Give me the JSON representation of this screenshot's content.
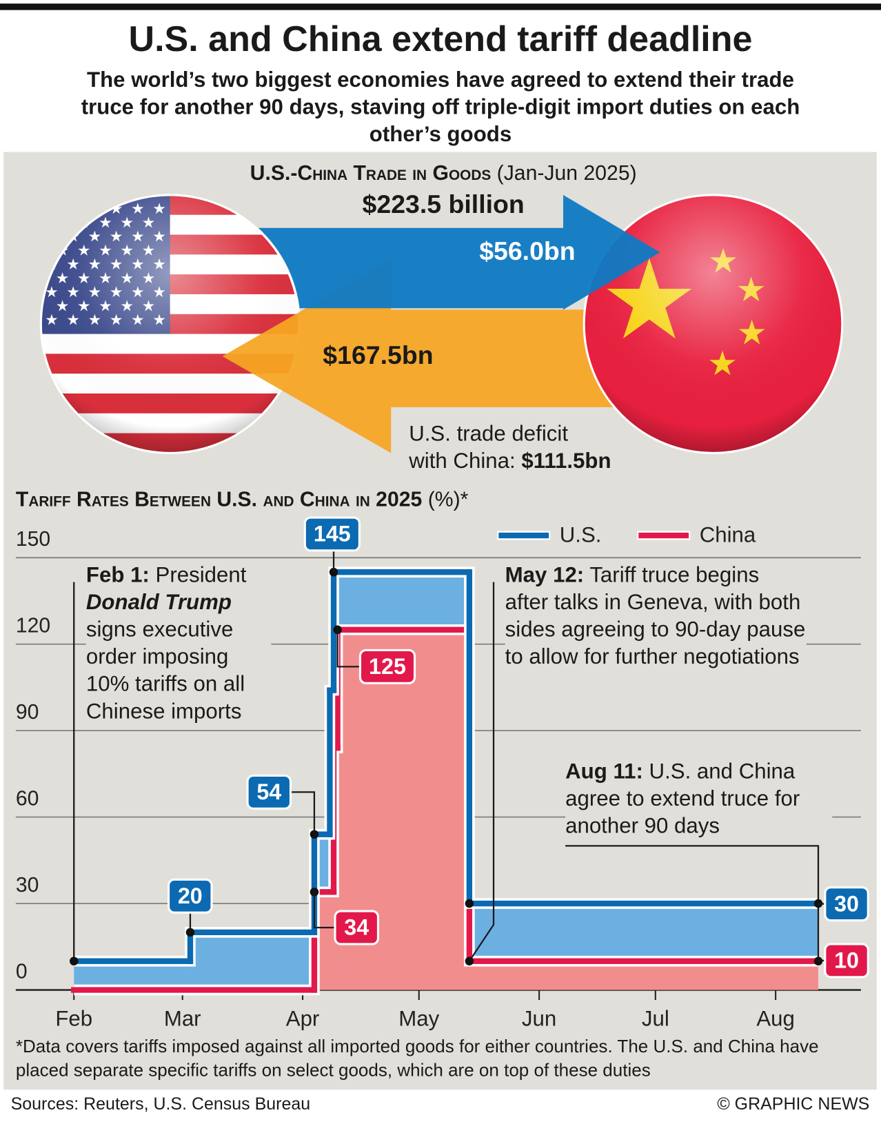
{
  "header": {
    "title": "U.S. and China extend tariff deadline",
    "subtitle": "The world’s two biggest economies have agreed to extend their trade truce for another 90 days, staving off triple-digit import duties on each other’s goods"
  },
  "trade": {
    "title": "U.S.-China Trade in Goods",
    "period": "(Jan-Jun 2025)",
    "total": "$223.5 billion",
    "us_exports": "$56.0bn",
    "china_exports": "$167.5bn",
    "deficit_label": [
      "U.S. trade deficit",
      "with China:"
    ],
    "deficit": "$111.5bn"
  },
  "chart_data": {
    "type": "line",
    "step": true,
    "title": "Tariff Rates Between U.S. and China in 2025",
    "unit": "(%)*",
    "xlim": [
      17,
      235
    ],
    "xticks": [
      {
        "value": 32,
        "label": "Feb"
      },
      {
        "value": 60,
        "label": "Mar"
      },
      {
        "value": 91,
        "label": "Apr"
      },
      {
        "value": 121,
        "label": "May"
      },
      {
        "value": 152,
        "label": "Jun"
      },
      {
        "value": 182,
        "label": "Jul"
      },
      {
        "value": 213,
        "label": "Aug"
      }
    ],
    "ylim": [
      0,
      150
    ],
    "yticks": [
      0,
      30,
      60,
      90,
      120,
      150
    ],
    "grid": true,
    "legend": "top-right",
    "series": [
      {
        "name": "U.S.",
        "color": "#0b6ab2",
        "fill": "#6cb0e2",
        "x": [
          32,
          62,
          94,
          98,
          99,
          134,
          224
        ],
        "values": [
          10,
          20,
          54,
          104,
          145,
          30,
          30
        ]
      },
      {
        "name": "China",
        "color": "#e2184b",
        "fill": "#f28d8e",
        "x": [
          32,
          94,
          99,
          100,
          134,
          224
        ],
        "values": [
          0,
          34,
          84,
          125,
          10,
          10
        ]
      }
    ],
    "annotations": [
      {
        "date": "Feb 1:",
        "text": "President",
        "emphasis": "Donald Trump",
        "text_after": "signs executive order imposing 10% tariffs on all Chinese imports"
      },
      {
        "date": "May 12:",
        "text": "Tariff truce begins after talks in Geneva, with both sides agreeing to 90-day pause to allow for further negotiations"
      },
      {
        "date": "Aug 11:",
        "text": "U.S. and China agree to extend truce for another 90 days"
      }
    ]
  },
  "footnote": "*Data covers tariffs imposed against all imported goods for either countries. The U.S. and China have placed separate specific tariffs on select goods, which are on top of these duties",
  "source": "Sources: Reuters, U.S. Census Bureau",
  "credit": "© GRAPHIC NEWS"
}
